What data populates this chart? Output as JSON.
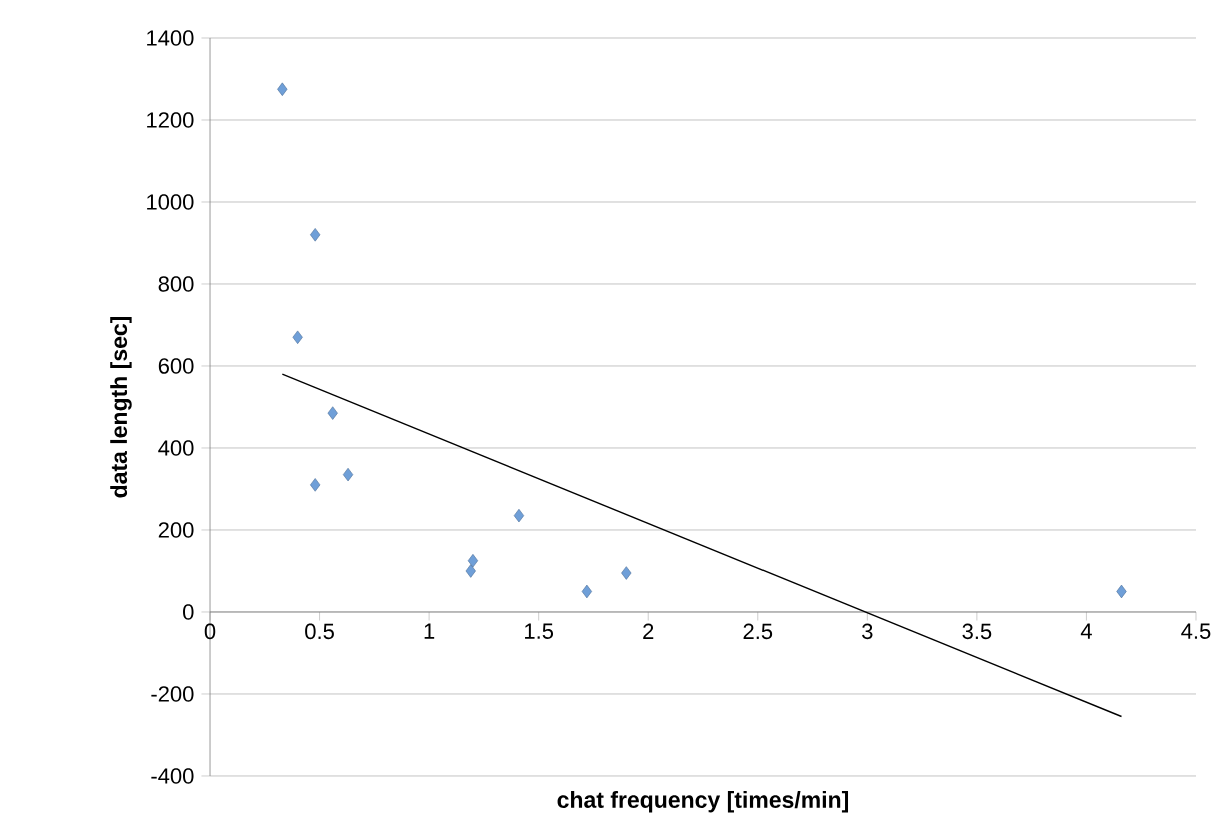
{
  "chart_data": {
    "type": "scatter",
    "xlabel": "chat frequency [times/min]",
    "ylabel": "data length [sec]",
    "xlim": [
      0,
      4.5
    ],
    "xticks": [
      0,
      0.5,
      1,
      1.5,
      2,
      2.5,
      3,
      3.5,
      4,
      4.5
    ],
    "ylim": [
      -400,
      1400
    ],
    "yticks": [
      -400,
      -200,
      0,
      200,
      400,
      600,
      800,
      1000,
      1200,
      1400
    ],
    "grid": "y",
    "marker": "diamond",
    "series": [
      {
        "color": "#6f9fd8",
        "x": [
          0.33,
          0.4,
          0.48,
          0.48,
          0.56,
          0.63,
          1.19,
          1.2,
          1.41,
          1.72,
          1.9,
          4.16
        ],
        "values": [
          1275,
          670,
          920,
          310,
          485,
          335,
          100,
          125,
          235,
          50,
          95,
          50
        ]
      },
      {
        "type": "line",
        "color": "#000000",
        "marker": "none",
        "x": [
          0.33,
          4.16
        ],
        "values": [
          580,
          -255
        ]
      }
    ]
  }
}
